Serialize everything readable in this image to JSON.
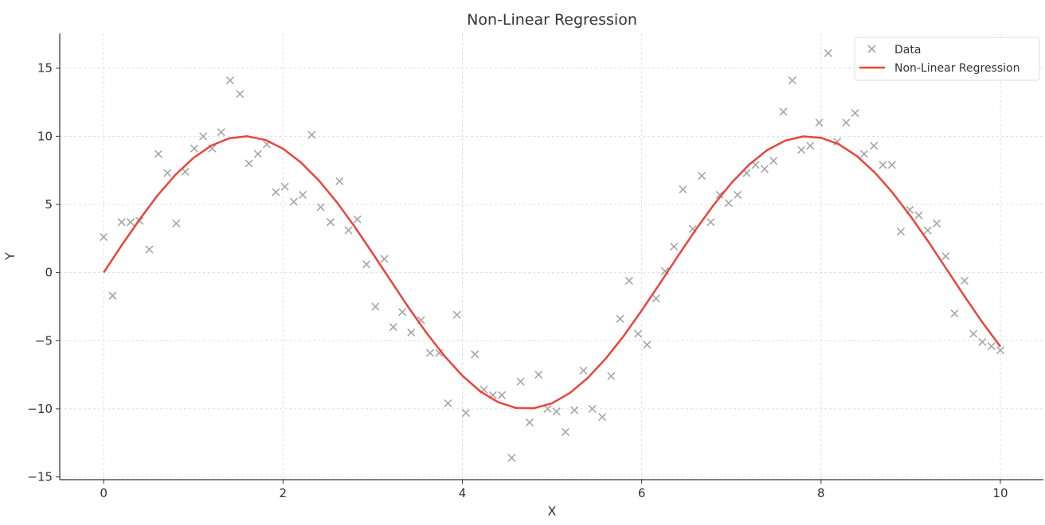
{
  "chart_data": {
    "type": "scatter",
    "title": "Non-Linear Regression",
    "xlabel": "X",
    "ylabel": "Y",
    "xlim": [
      -0.49,
      10.48
    ],
    "ylim": [
      -15.2,
      17.55
    ],
    "xticks": [
      0,
      2,
      4,
      6,
      8,
      10
    ],
    "yticks": [
      -15,
      -10,
      -5,
      0,
      5,
      10,
      15
    ],
    "xtick_labels": [
      "0",
      "2",
      "4",
      "6",
      "8",
      "10"
    ],
    "ytick_labels": [
      "−15",
      "−10",
      "−5",
      "0",
      "5",
      "10",
      "15"
    ],
    "grid": true,
    "legend_position": "top-right",
    "series": [
      {
        "name": "Data",
        "kind": "scatter",
        "marker": "x",
        "color": "#a6a6a6",
        "x": [
          0.0,
          0.1,
          0.2,
          0.3,
          0.4,
          0.51,
          0.61,
          0.71,
          0.81,
          0.91,
          1.01,
          1.11,
          1.21,
          1.31,
          1.41,
          1.52,
          1.62,
          1.72,
          1.82,
          1.92,
          2.02,
          2.12,
          2.22,
          2.32,
          2.42,
          2.53,
          2.63,
          2.73,
          2.83,
          2.93,
          3.03,
          3.13,
          3.23,
          3.33,
          3.43,
          3.54,
          3.64,
          3.74,
          3.84,
          3.94,
          4.04,
          4.14,
          4.24,
          4.34,
          4.44,
          4.55,
          4.65,
          4.75,
          4.85,
          4.95,
          5.05,
          5.15,
          5.25,
          5.35,
          5.45,
          5.56,
          5.66,
          5.76,
          5.86,
          5.96,
          6.06,
          6.16,
          6.26,
          6.36,
          6.46,
          6.57,
          6.67,
          6.77,
          6.87,
          6.97,
          7.07,
          7.17,
          7.27,
          7.37,
          7.47,
          7.58,
          7.68,
          7.78,
          7.88,
          7.98,
          8.08,
          8.18,
          8.28,
          8.38,
          8.48,
          8.59,
          8.69,
          8.79,
          8.89,
          8.99,
          9.09,
          9.19,
          9.29,
          9.39,
          9.49,
          9.6,
          9.7,
          9.8,
          9.9,
          10.0
        ],
        "y": [
          2.6,
          -1.7,
          3.7,
          3.7,
          3.8,
          1.7,
          8.7,
          7.3,
          3.6,
          7.4,
          9.1,
          10.0,
          9.1,
          10.3,
          14.1,
          13.1,
          8.0,
          8.7,
          9.4,
          5.9,
          6.3,
          5.2,
          5.7,
          10.1,
          4.8,
          3.7,
          6.7,
          3.1,
          3.9,
          0.6,
          -2.5,
          1.0,
          -4.0,
          -2.9,
          -4.4,
          -3.5,
          -5.9,
          -5.9,
          -9.6,
          -3.1,
          -10.3,
          -6.0,
          -8.6,
          -9.0,
          -9.0,
          -13.6,
          -8.0,
          -11.0,
          -7.5,
          -10.0,
          -10.2,
          -11.7,
          -10.1,
          -7.2,
          -10.0,
          -10.6,
          -7.6,
          -3.4,
          -0.6,
          -4.5,
          -5.3,
          -1.9,
          0.1,
          1.9,
          6.1,
          3.2,
          7.1,
          3.7,
          5.7,
          5.1,
          5.7,
          7.3,
          7.9,
          7.6,
          8.2,
          11.8,
          14.1,
          9.0,
          9.3,
          11.0,
          16.1,
          9.6,
          11.0,
          11.7,
          8.7,
          9.3,
          7.9,
          7.9,
          3.0,
          4.6,
          4.2,
          3.1,
          3.6,
          1.2,
          -3.0,
          -0.6,
          -4.5,
          -5.1,
          -5.4,
          -5.7
        ]
      },
      {
        "name": "Non-Linear Regression",
        "kind": "line",
        "color": "#e8453c",
        "x": [
          0,
          0.2,
          0.4,
          0.6,
          0.8,
          1,
          1.2,
          1.4,
          1.6,
          1.8,
          2,
          2.2,
          2.4,
          2.6,
          2.8,
          3,
          3.2,
          3.4,
          3.6,
          3.8,
          4,
          4.2,
          4.4,
          4.6,
          4.8,
          5,
          5.2,
          5.4,
          5.6,
          5.8,
          6,
          6.2,
          6.4,
          6.6,
          6.8,
          7,
          7.2,
          7.4,
          7.6,
          7.8,
          8,
          8.2,
          8.4,
          8.6,
          8.8,
          9,
          9.2,
          9.4,
          9.6,
          9.8,
          10
        ],
        "y": [
          0,
          1.99,
          3.89,
          5.65,
          7.17,
          8.41,
          9.32,
          9.85,
          10.0,
          9.74,
          9.09,
          8.08,
          6.75,
          5.16,
          3.35,
          1.41,
          -0.58,
          -2.56,
          -4.43,
          -6.12,
          -7.57,
          -8.72,
          -9.52,
          -9.94,
          -9.96,
          -9.59,
          -8.83,
          -7.73,
          -6.31,
          -4.65,
          -2.79,
          -0.83,
          1.17,
          3.12,
          4.94,
          6.57,
          7.93,
          8.99,
          9.68,
          9.99,
          9.89,
          9.41,
          8.55,
          7.34,
          5.84,
          4.12,
          2.23,
          0.25,
          -1.74,
          -3.66,
          -5.44
        ]
      }
    ]
  }
}
